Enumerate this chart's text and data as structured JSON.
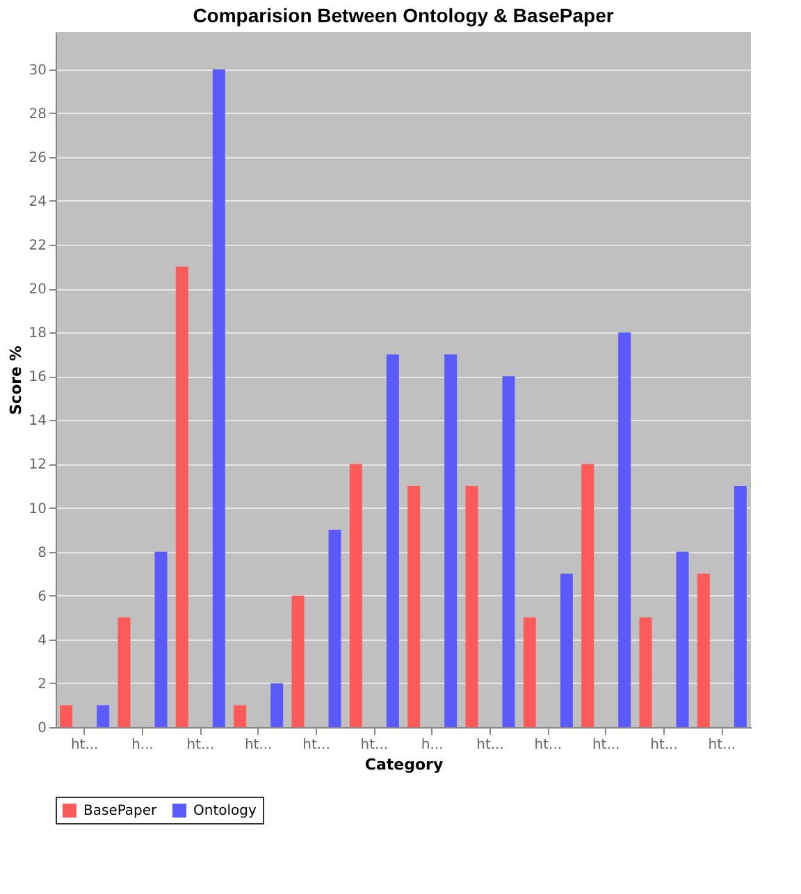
{
  "chart_data": {
    "type": "bar",
    "title": "Comparision Between Ontology & BasePaper",
    "xlabel": "Category",
    "ylabel": "Score %",
    "categories": [
      "ht...",
      "h...",
      "ht...",
      "ht...",
      "ht...",
      "ht...",
      "h...",
      "ht...",
      "ht...",
      "ht...",
      "ht...",
      "ht..."
    ],
    "series": [
      {
        "name": "BasePaper",
        "color": "#ff5a5a",
        "values": [
          1,
          5,
          21,
          1,
          6,
          12,
          11,
          11,
          5,
          12,
          5,
          7
        ]
      },
      {
        "name": "Ontology",
        "color": "#5a5aff",
        "values": [
          1,
          8,
          30,
          2,
          9,
          17,
          17,
          16,
          7,
          18,
          8,
          11
        ]
      }
    ],
    "ylim": [
      0,
      31.7
    ],
    "yticks": [
      0,
      2,
      4,
      6,
      8,
      10,
      12,
      14,
      16,
      18,
      20,
      22,
      24,
      26,
      28,
      30
    ],
    "grid": "y",
    "legend": "bottom"
  }
}
